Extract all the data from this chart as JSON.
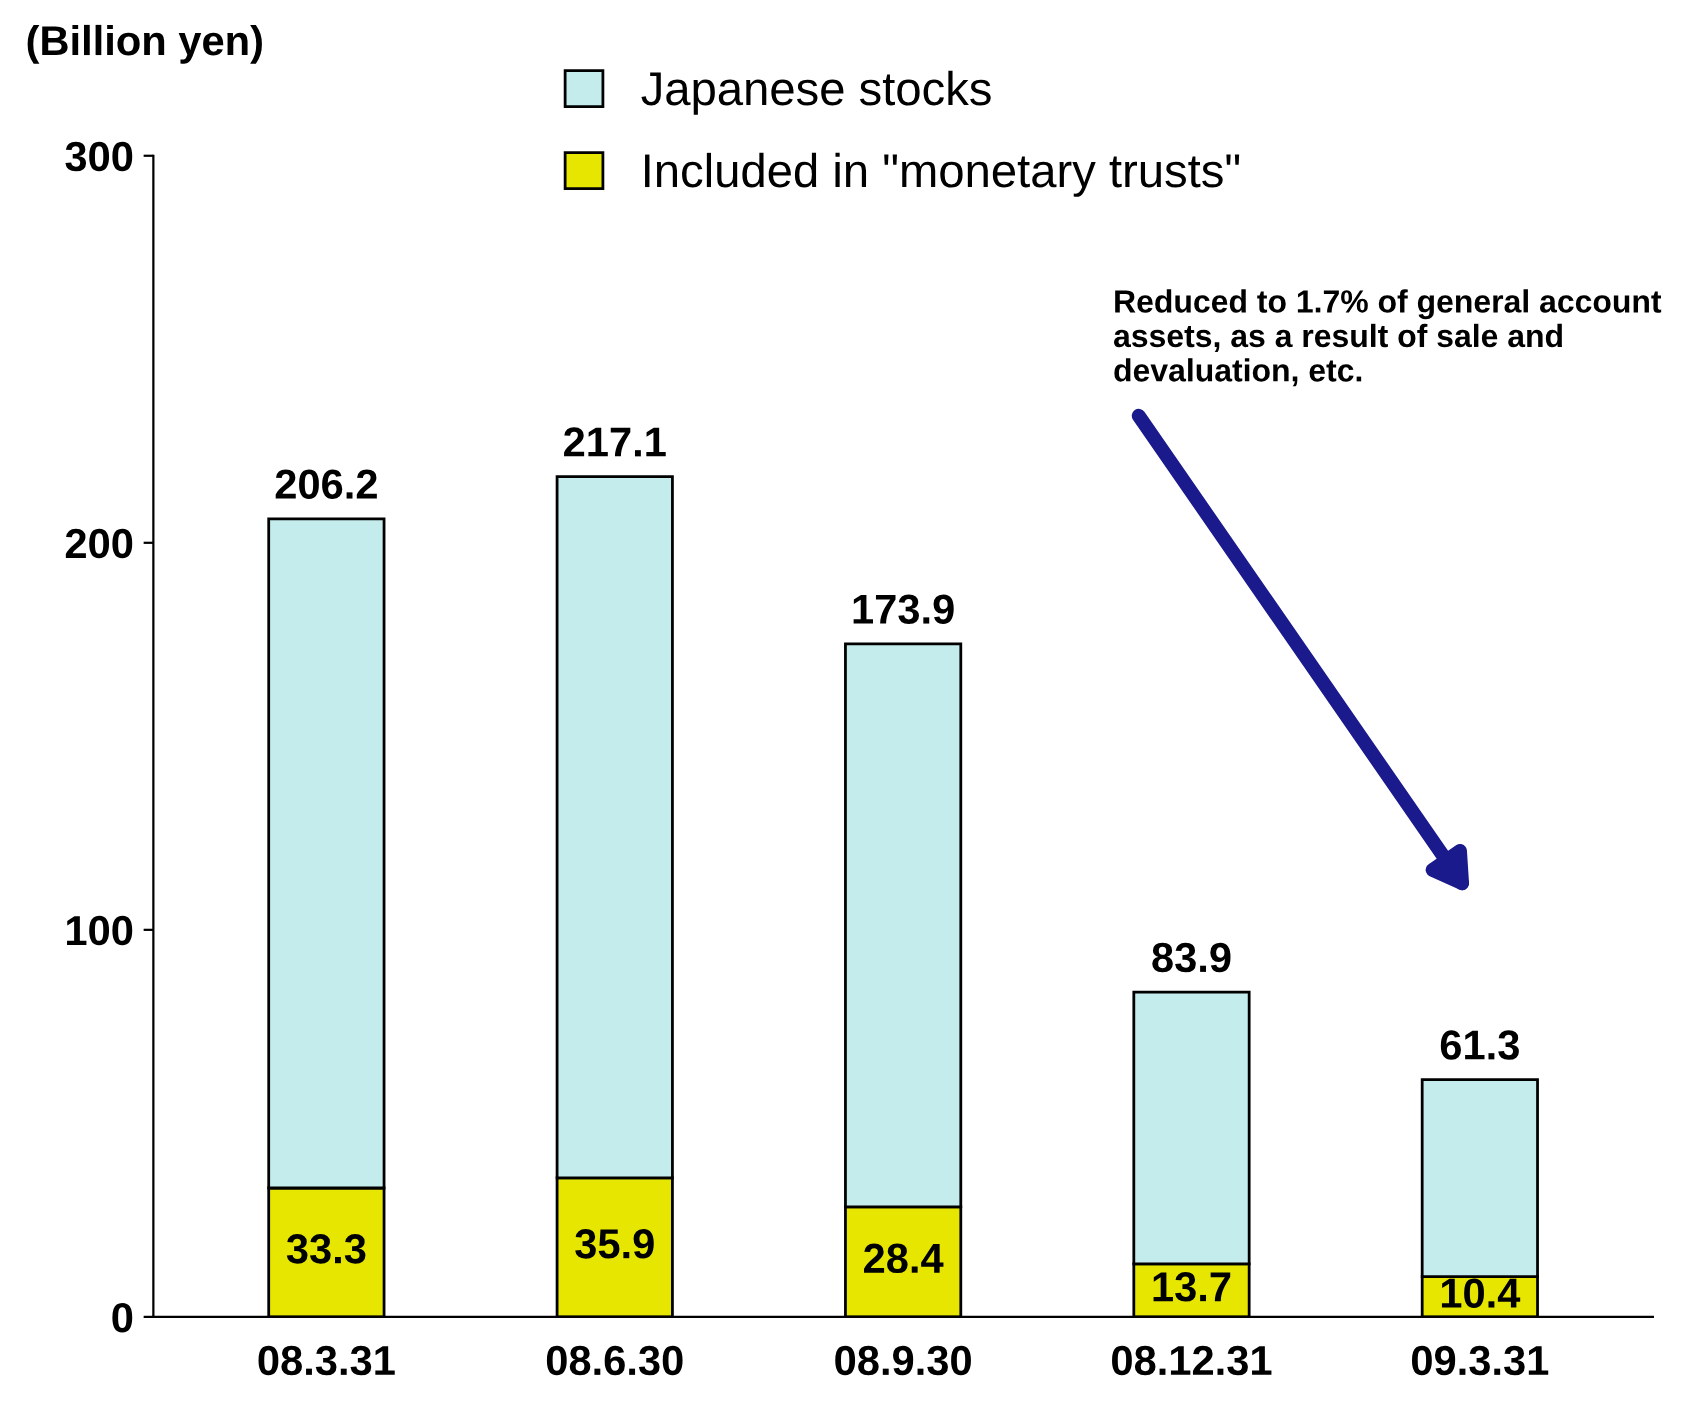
{
  "chart_data": {
    "type": "bar",
    "stacked": true,
    "ylabel": "(Billion yen)",
    "categories": [
      "08.3.31",
      "08.6.30",
      "08.9.30",
      "08.12.31",
      "09.3.31"
    ],
    "series": [
      {
        "name": "Included in \"monetary trusts\"",
        "color": "#e6e600",
        "values": [
          33.3,
          35.9,
          28.4,
          13.7,
          10.4
        ],
        "value_labels": [
          "33.3",
          "35.9",
          "28.4",
          "13.7",
          "10.4"
        ]
      },
      {
        "name": "Japanese stocks",
        "color": "#c4ecec",
        "values": [
          172.9,
          181.2,
          145.5,
          70.2,
          50.9
        ]
      }
    ],
    "totals": [
      "206.2",
      "217.1",
      "173.9",
      "83.9",
      "61.3"
    ],
    "ylim": [
      0,
      300
    ],
    "yticks": [
      0,
      100,
      200,
      300
    ],
    "grid": false,
    "legend": "top",
    "annotations": [
      "Reduced to 1.7% of general account assets, as a result of sale and devaluation, etc."
    ]
  }
}
